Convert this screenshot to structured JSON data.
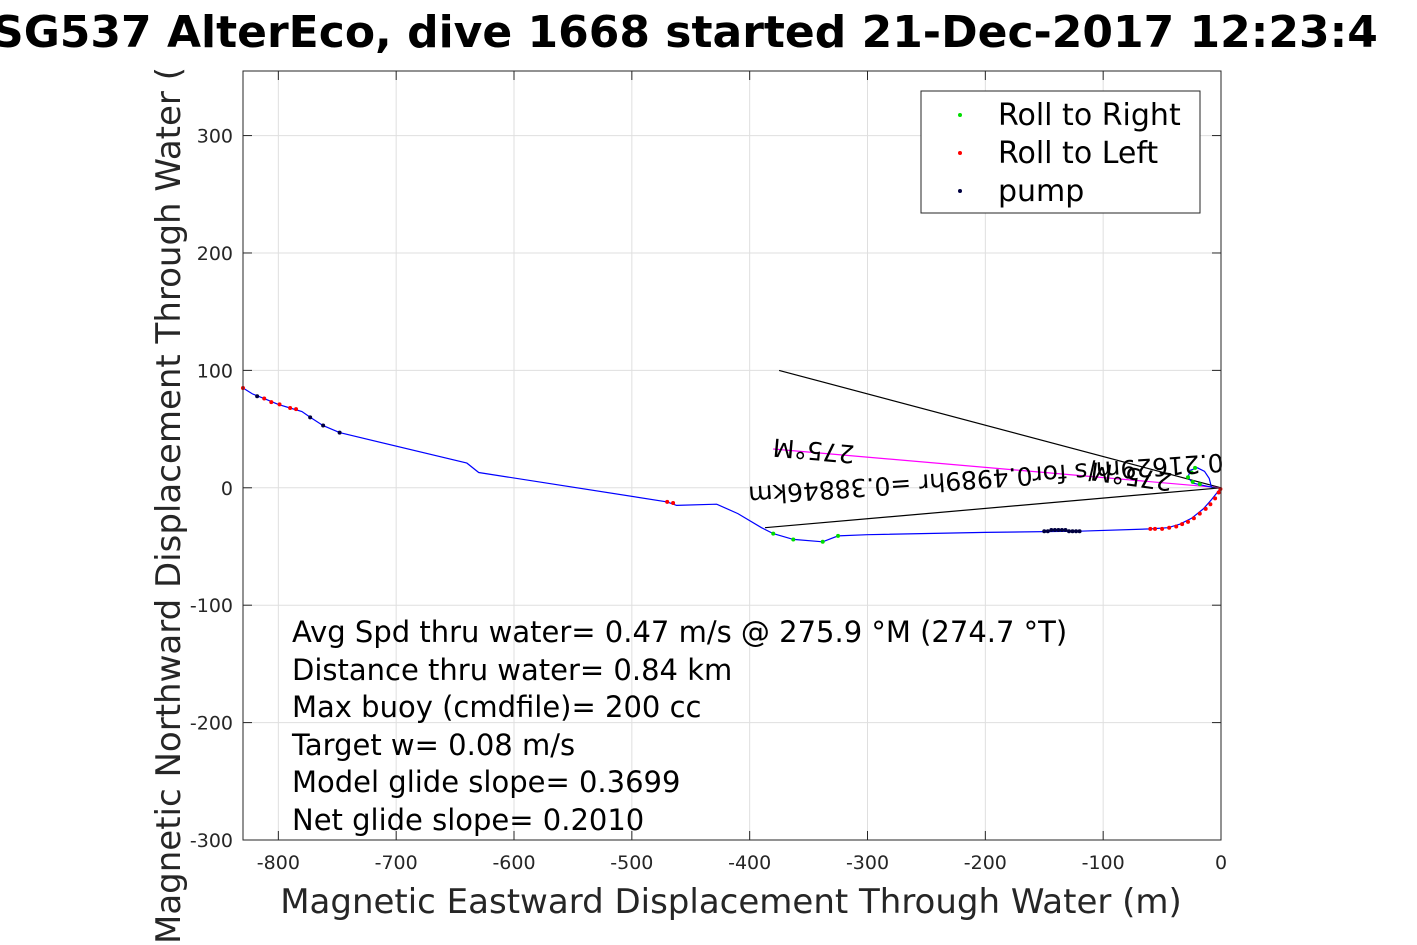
{
  "chart_data": {
    "type": "scatter",
    "title": "SG537 AlterEco, dive 1668 started 21-Dec-2017 12:23:4",
    "xlabel": "Magnetic Eastward Displacement Through Water (m)",
    "ylabel": "Magnetic Northward Displacement Through Water (",
    "xlim": [
      -830,
      0
    ],
    "ylim": [
      -300,
      355
    ],
    "xticks": [
      -800,
      -700,
      -600,
      -500,
      -400,
      -300,
      -200,
      -100,
      0
    ],
    "yticks": [
      -300,
      -200,
      -100,
      0,
      100,
      200,
      300
    ],
    "grid": true,
    "legend_position": "top-right",
    "legend": [
      {
        "label": "Roll to Right",
        "color": "#00dd00"
      },
      {
        "label": "Roll to Left",
        "color": "#ff0000"
      },
      {
        "label": "pump",
        "color": "#000040"
      }
    ],
    "track": {
      "color": "#0000ff",
      "points": [
        [
          0,
          0
        ],
        [
          -8,
          -10
        ],
        [
          -15,
          -18
        ],
        [
          -25,
          -26
        ],
        [
          -35,
          -31
        ],
        [
          -45,
          -34
        ],
        [
          -60,
          -35
        ],
        [
          -120,
          -37
        ],
        [
          -200,
          -38
        ],
        [
          -300,
          -40
        ],
        [
          -325,
          -41
        ],
        [
          -338,
          -46
        ],
        [
          -363,
          -44
        ],
        [
          -380,
          -39
        ],
        [
          -390,
          -34
        ],
        [
          -410,
          -22
        ],
        [
          -428,
          -14
        ],
        [
          -462,
          -15
        ],
        [
          -470,
          -12
        ],
        [
          -630,
          13
        ],
        [
          -640,
          21
        ],
        [
          -748,
          47
        ],
        [
          -762,
          53
        ],
        [
          -773,
          60
        ],
        [
          -780,
          65
        ],
        [
          -790,
          68
        ],
        [
          -800,
          71
        ],
        [
          -812,
          76
        ],
        [
          -822,
          80
        ],
        [
          -830,
          85
        ]
      ]
    },
    "loop": {
      "color": "#0000ff",
      "points": [
        [
          -8,
          0
        ],
        [
          -10,
          8
        ],
        [
          -14,
          14
        ],
        [
          -20,
          17
        ],
        [
          -26,
          15
        ],
        [
          -28,
          9
        ],
        [
          -24,
          4
        ],
        [
          -15,
          2
        ],
        [
          -5,
          0
        ]
      ]
    },
    "series": [
      {
        "name": "Roll to Right",
        "color": "#00dd00",
        "points": [
          [
            -380,
            -39
          ],
          [
            -363,
            -44
          ],
          [
            -338,
            -46
          ],
          [
            -325,
            -41
          ],
          [
            -22,
            17
          ],
          [
            -25,
            13
          ],
          [
            -28,
            9
          ],
          [
            -24,
            5
          ],
          [
            -18,
            3
          ]
        ]
      },
      {
        "name": "Roll to Left",
        "color": "#ff0000",
        "points": [
          [
            -470,
            -12
          ],
          [
            -465,
            -13
          ],
          [
            -799,
            71
          ],
          [
            -806,
            73
          ],
          [
            -812,
            76
          ],
          [
            -790,
            68
          ],
          [
            -785,
            67
          ],
          [
            -830,
            85
          ],
          [
            -0.5,
            -1
          ],
          [
            -2,
            -4
          ],
          [
            -5,
            -9
          ],
          [
            -9,
            -14
          ],
          [
            -13,
            -18
          ],
          [
            -18,
            -22
          ],
          [
            -23,
            -26
          ],
          [
            -28,
            -29
          ],
          [
            -33,
            -31
          ],
          [
            -38,
            -33
          ],
          [
            -44,
            -34
          ],
          [
            -50,
            -35
          ],
          [
            -56,
            -35
          ],
          [
            -60,
            -35
          ]
        ]
      },
      {
        "name": "pump",
        "color": "#000040",
        "points": [
          [
            -150,
            -37
          ],
          [
            -147,
            -37
          ],
          [
            -144,
            -36
          ],
          [
            -141,
            -36
          ],
          [
            -138,
            -36
          ],
          [
            -135,
            -36
          ],
          [
            -132,
            -36
          ],
          [
            -129,
            -37
          ],
          [
            -126,
            -37
          ],
          [
            -123,
            -37
          ],
          [
            -120,
            -37
          ],
          [
            -748,
            47
          ],
          [
            -762,
            53
          ],
          [
            -773,
            60
          ],
          [
            -818,
            78
          ]
        ]
      }
    ],
    "lines": [
      {
        "color": "#000000",
        "points": [
          [
            -375,
            100
          ],
          [
            0,
            0
          ]
        ]
      },
      {
        "color": "#000000",
        "points": [
          [
            -387,
            -34
          ],
          [
            0,
            0
          ]
        ]
      },
      {
        "color": "#ff00ff",
        "points": [
          [
            -380,
            33
          ],
          [
            0,
            0
          ]
        ]
      }
    ],
    "rotated_labels": [
      {
        "text": "0.21629m/s for0.4989hr =0.38846km",
        "x": -200,
        "y": 15,
        "angle": 176
      },
      {
        "text": "275°M",
        "x": -345,
        "y": 39,
        "angle": 185
      },
      {
        "text": "275°M",
        "x": -75,
        "y": 17,
        "angle": 188
      }
    ],
    "annotations": [
      "Avg Spd thru water=  0.47 m/s @ 275.9 °M (274.7 °T)",
      "Distance thru water=  0.84 km",
      "Max buoy (cmdfile)= 200 cc",
      "Target w= 0.08 m/s",
      "Model glide slope= 0.3699",
      "Net glide slope= 0.2010"
    ]
  }
}
